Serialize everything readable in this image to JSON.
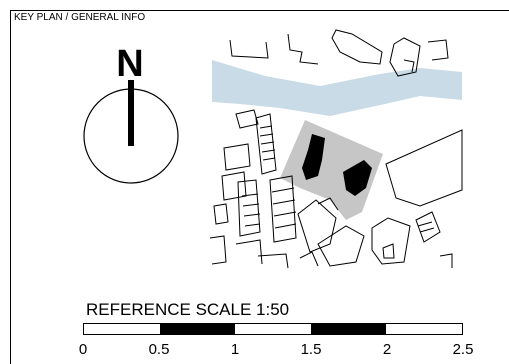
{
  "panel": {
    "title": "KEY PLAN / GENERAL INFO"
  },
  "north_arrow": {
    "label": "N"
  },
  "scale": {
    "title": "REFERENCE SCALE 1:50",
    "ticks": [
      "0",
      "0.5",
      "1",
      "1.5",
      "2",
      "2.5"
    ],
    "segment_fills": [
      "white",
      "black",
      "white",
      "white",
      "black",
      "white"
    ]
  },
  "map": {
    "colors": {
      "river": "#c8dbe6",
      "site": "#c6c6c6",
      "building": "#000000",
      "outline": "#000000"
    }
  }
}
